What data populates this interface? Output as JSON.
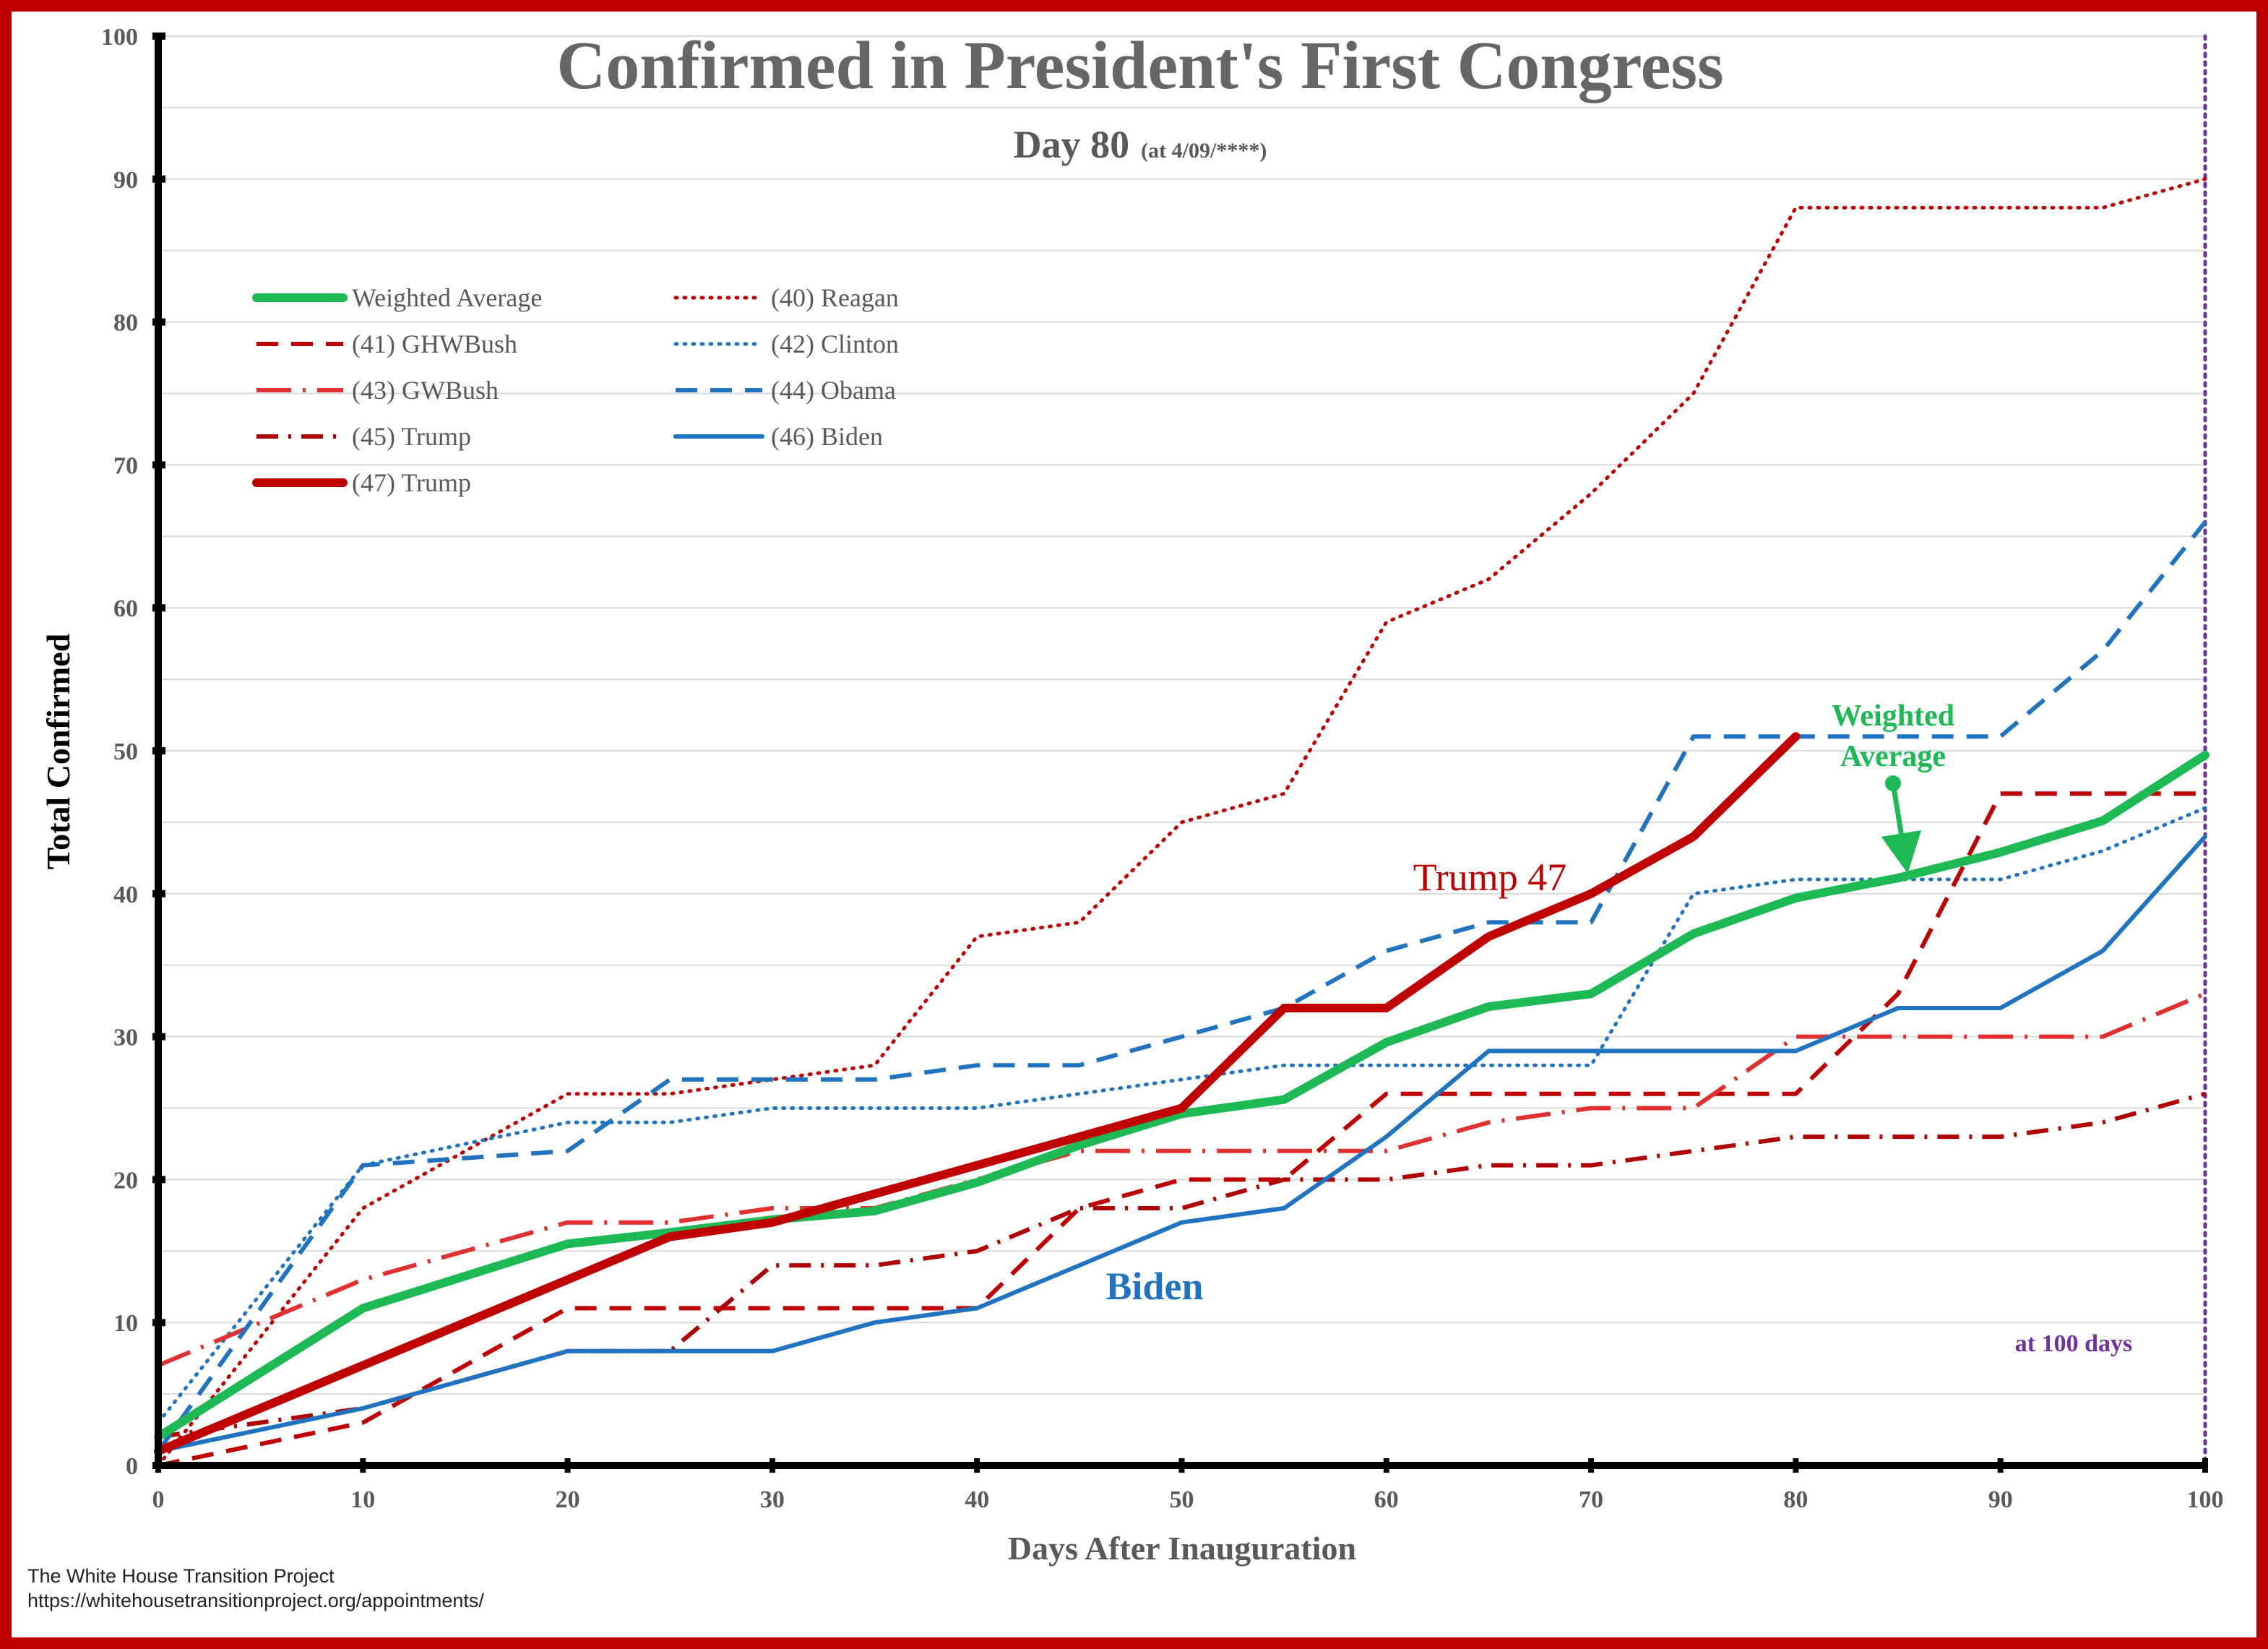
{
  "chart_data": {
    "type": "line",
    "title": "Confirmed in President's First Congress",
    "subtitle_main": "Day 80",
    "subtitle_note": "(at 4/09/****)",
    "xlabel": "Days After Inauguration",
    "ylabel": "Total Confirmed",
    "xlim": [
      0,
      100
    ],
    "ylim": [
      0,
      100
    ],
    "xticks": [
      0,
      10,
      20,
      30,
      40,
      50,
      60,
      70,
      80,
      90,
      100
    ],
    "yticks": [
      0,
      10,
      20,
      30,
      40,
      50,
      60,
      70,
      80,
      90,
      100
    ],
    "grid": true,
    "legend_position": "top-left",
    "series": [
      {
        "name": "Weighted Average",
        "color": "#1db954",
        "style": "solid-thick",
        "x": [
          0,
          10,
          20,
          25,
          30,
          35,
          40,
          45,
          50,
          55,
          60,
          65,
          70,
          75,
          80,
          85,
          90,
          95,
          100
        ],
        "y": [
          2,
          11,
          15.5,
          16.3,
          17.2,
          17.8,
          19.8,
          22.4,
          24.6,
          25.6,
          29.6,
          32.1,
          33,
          37.2,
          39.7,
          41.1,
          42.9,
          45.1,
          49.7
        ]
      },
      {
        "name": "(41) GHWBush",
        "color": "#c00000",
        "style": "dash",
        "x": [
          0,
          10,
          20,
          25,
          30,
          35,
          40,
          45,
          50,
          55,
          60,
          65,
          70,
          75,
          80,
          85,
          90,
          95,
          100
        ],
        "y": [
          0,
          3,
          11,
          11,
          11,
          11,
          11,
          18,
          20,
          20,
          26,
          26,
          26,
          26,
          26,
          33,
          47,
          47,
          47
        ]
      },
      {
        "name": "(43) GWBush",
        "color": "#e03030",
        "style": "dash-dot-long",
        "x": [
          0,
          10,
          20,
          25,
          30,
          35,
          40,
          45,
          50,
          55,
          60,
          65,
          70,
          75,
          80,
          85,
          90,
          95,
          100
        ],
        "y": [
          7,
          13,
          17,
          17,
          18,
          18,
          20,
          22,
          22,
          22,
          22,
          24,
          25,
          25,
          30,
          30,
          30,
          30,
          33
        ]
      },
      {
        "name": "(45) Trump",
        "color": "#b00000",
        "style": "dash-dot",
        "x": [
          0,
          10,
          20,
          25,
          30,
          35,
          40,
          45,
          50,
          55,
          60,
          65,
          70,
          75,
          80,
          85,
          90,
          95,
          100
        ],
        "y": [
          2,
          4,
          8,
          8,
          14,
          14,
          15,
          18,
          18,
          20,
          20,
          21,
          21,
          22,
          23,
          23,
          23,
          24,
          26
        ]
      },
      {
        "name": "(47) Trump",
        "color": "#c00000",
        "style": "solid-thick",
        "x": [
          0,
          10,
          20,
          25,
          30,
          35,
          40,
          45,
          50,
          55,
          60,
          65,
          70,
          75,
          80
        ],
        "y": [
          1,
          7,
          13,
          16,
          17,
          19,
          21,
          23,
          25,
          32,
          32,
          37,
          40,
          44,
          51
        ]
      },
      {
        "name": "(40) Reagan",
        "color": "#c00000",
        "style": "dot",
        "x": [
          0,
          10,
          20,
          25,
          30,
          35,
          40,
          45,
          50,
          55,
          60,
          65,
          70,
          75,
          80,
          85,
          90,
          95,
          100
        ],
        "y": [
          0,
          18,
          26,
          26,
          27,
          28,
          37,
          38,
          45,
          47,
          59,
          62,
          68,
          75,
          88,
          88,
          88,
          88,
          90
        ]
      },
      {
        "name": "(42) Clinton",
        "color": "#1f73c0",
        "style": "dot",
        "x": [
          0,
          10,
          20,
          25,
          30,
          35,
          40,
          45,
          50,
          55,
          60,
          65,
          70,
          75,
          80,
          85,
          90,
          95,
          100
        ],
        "y": [
          3,
          21,
          24,
          24,
          25,
          25,
          25,
          26,
          27,
          28,
          28,
          28,
          28,
          40,
          41,
          41,
          41,
          43,
          46
        ]
      },
      {
        "name": "(44) Obama",
        "color": "#1f73c0",
        "style": "dash",
        "x": [
          0,
          10,
          20,
          25,
          30,
          35,
          40,
          45,
          50,
          55,
          60,
          65,
          70,
          75,
          80,
          85,
          90,
          95,
          100
        ],
        "y": [
          1,
          21,
          22,
          27,
          27,
          27,
          28,
          28,
          30,
          32,
          36,
          38,
          38,
          51,
          51,
          51,
          51,
          57,
          66
        ]
      },
      {
        "name": "(46) Biden",
        "color": "#1f73c0",
        "style": "solid",
        "x": [
          0,
          10,
          20,
          25,
          30,
          35,
          40,
          45,
          50,
          55,
          60,
          65,
          70,
          75,
          80,
          85,
          90,
          95,
          100
        ],
        "y": [
          1,
          4,
          8,
          8,
          8,
          10,
          11,
          14,
          17,
          18,
          23,
          29,
          29,
          29,
          29,
          32,
          32,
          36,
          44
        ]
      }
    ],
    "annotations": {
      "trump47": "Trump 47",
      "biden": "Biden",
      "weighted_line1": "Weighted",
      "weighted_line2": "Average",
      "hundred_days": "at 100 days"
    },
    "colors": {
      "frame": "#c00000",
      "title": "#666666",
      "axis": "#000000",
      "grid": "#d9d9d9",
      "weighted_label": "#1db954",
      "biden_label": "#1f73c0",
      "trump_label": "#c00000",
      "hundred_days": "#7030a0"
    }
  },
  "footer": {
    "line1": "The White House Transition Project",
    "line2": "https://whitehousetransitionproject.org/appointments/"
  }
}
